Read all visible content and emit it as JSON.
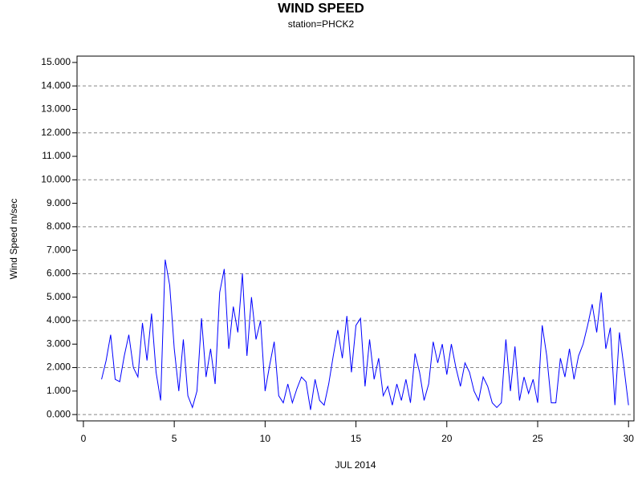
{
  "chart_data": {
    "type": "line",
    "title": "WIND SPEED",
    "subtitle": "station=PHCK2",
    "y_label": "Wind Speed m/sec",
    "x_label": "JUL 2014",
    "xlim": [
      -0.35,
      30.3
    ],
    "xticks": [
      0,
      5,
      10,
      15,
      20,
      25,
      30
    ],
    "ylim": [
      -0.27,
      15.27
    ],
    "yticks": [
      {
        "value": 0,
        "label": "0.000"
      },
      {
        "value": 1,
        "label": "1.000"
      },
      {
        "value": 2,
        "label": "2.000"
      },
      {
        "value": 3,
        "label": "3.000"
      },
      {
        "value": 4,
        "label": "4.000"
      },
      {
        "value": 5,
        "label": "5.000"
      },
      {
        "value": 6,
        "label": "6.000"
      },
      {
        "value": 7,
        "label": "7.000"
      },
      {
        "value": 8,
        "label": "8.000"
      },
      {
        "value": 9,
        "label": "9.000"
      },
      {
        "value": 10,
        "label": "10.000"
      },
      {
        "value": 11,
        "label": "11.000"
      },
      {
        "value": 12,
        "label": "12.000"
      },
      {
        "value": 13,
        "label": "13.000"
      },
      {
        "value": 14,
        "label": "14.000"
      },
      {
        "value": 15,
        "label": "15.000"
      }
    ],
    "ygrid": [
      0,
      2,
      4,
      6,
      8,
      10,
      12,
      14
    ],
    "x": [
      1,
      1.25,
      1.5,
      1.75,
      2,
      2.25,
      2.5,
      2.75,
      3,
      3.25,
      3.5,
      3.75,
      4,
      4.25,
      4.5,
      4.75,
      5,
      5.25,
      5.5,
      5.75,
      6,
      6.25,
      6.5,
      6.75,
      7,
      7.25,
      7.5,
      7.75,
      8,
      8.25,
      8.5,
      8.75,
      9,
      9.25,
      9.5,
      9.75,
      10,
      10.25,
      10.5,
      10.75,
      11,
      11.25,
      11.5,
      11.75,
      12,
      12.25,
      12.5,
      12.75,
      13,
      13.25,
      13.5,
      13.75,
      14,
      14.25,
      14.5,
      14.75,
      15,
      15.25,
      15.5,
      15.75,
      16,
      16.25,
      16.5,
      16.75,
      17,
      17.25,
      17.5,
      17.75,
      18,
      18.25,
      18.5,
      18.75,
      19,
      19.25,
      19.5,
      19.75,
      20,
      20.25,
      20.5,
      20.75,
      21,
      21.25,
      21.5,
      21.75,
      22,
      22.25,
      22.5,
      22.75,
      23,
      23.25,
      23.5,
      23.75,
      24,
      24.25,
      24.5,
      24.75,
      25,
      25.25,
      25.5,
      25.75,
      26,
      26.25,
      26.5,
      26.75,
      27,
      27.25,
      27.5,
      27.75,
      28,
      28.25,
      28.5,
      28.75,
      29,
      29.25,
      29.5,
      29.75,
      30
    ],
    "series": [
      {
        "name": "Wind Speed",
        "color": "#0000ff",
        "values": [
          1.5,
          2.3,
          3.4,
          1.5,
          1.4,
          2.5,
          3.4,
          2.0,
          1.6,
          3.9,
          2.3,
          4.3,
          1.8,
          0.6,
          6.6,
          5.5,
          2.8,
          1.0,
          3.2,
          0.8,
          0.3,
          1.0,
          4.1,
          1.6,
          2.8,
          1.3,
          5.2,
          6.2,
          2.8,
          4.6,
          3.5,
          6.0,
          2.5,
          5.0,
          3.2,
          4.0,
          1.0,
          2.1,
          3.1,
          0.8,
          0.5,
          1.3,
          0.5,
          1.1,
          1.6,
          1.4,
          0.2,
          1.5,
          0.6,
          0.4,
          1.3,
          2.5,
          3.6,
          2.4,
          4.2,
          1.8,
          3.8,
          4.1,
          1.2,
          3.2,
          1.5,
          2.4,
          0.8,
          1.2,
          0.4,
          1.3,
          0.6,
          1.5,
          0.5,
          2.6,
          1.8,
          0.6,
          1.3,
          3.1,
          2.2,
          3.0,
          1.7,
          3.0,
          2.0,
          1.2,
          2.2,
          1.8,
          1.0,
          0.6,
          1.6,
          1.2,
          0.5,
          0.3,
          0.5,
          3.2,
          1.0,
          2.9,
          0.6,
          1.6,
          0.9,
          1.5,
          0.5,
          3.8,
          2.5,
          0.5,
          0.5,
          2.4,
          1.6,
          2.8,
          1.5,
          2.5,
          3.0,
          3.8,
          4.7,
          3.5,
          5.2,
          2.8,
          3.7,
          0.4,
          3.5,
          2.0,
          0.4
        ]
      }
    ]
  }
}
